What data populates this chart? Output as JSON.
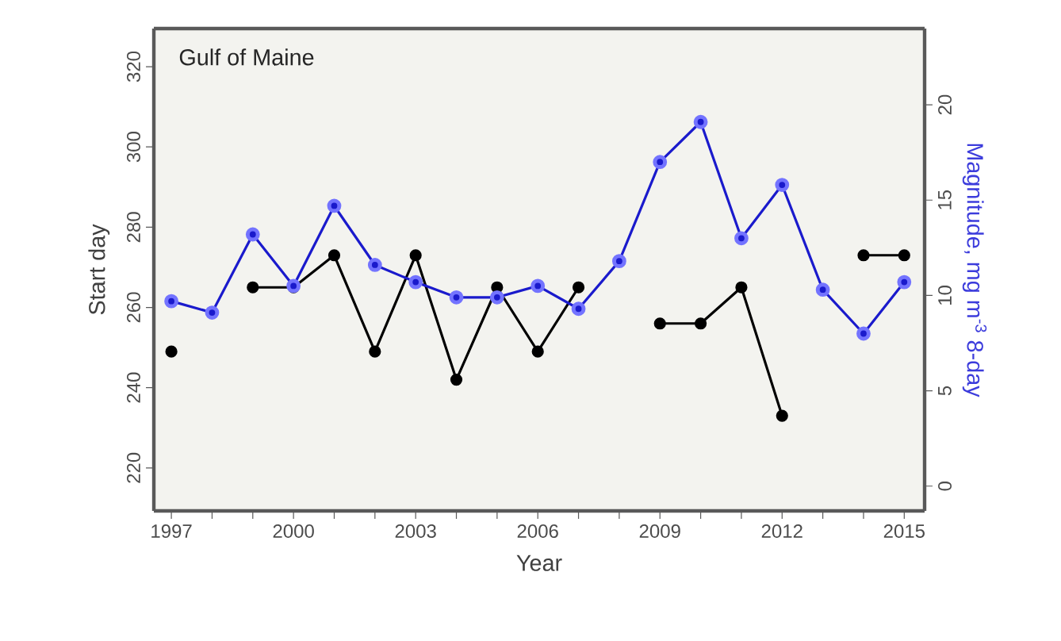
{
  "chart_data": {
    "type": "line",
    "xlabel": "Year",
    "ylabel": "Start day",
    "y2label": "Magnitude, mg m$^{-3}$ 8-day",
    "annotations": [
      "Gulf of Maine"
    ],
    "x": [
      1997,
      1998,
      1999,
      2000,
      2001,
      2002,
      2003,
      2004,
      2005,
      2006,
      2007,
      2008,
      2009,
      2010,
      2011,
      2012,
      2013,
      2014,
      2015
    ],
    "series": [
      {
        "color": "#000000",
        "values": [
          249,
          null,
          265,
          265,
          273,
          249,
          273,
          242,
          265,
          249,
          265,
          null,
          256,
          256,
          265,
          233,
          null,
          273,
          273
        ]
      },
      {
        "color": "#1a1acc",
        "axis": "y2",
        "values": [
          9.7,
          9.1,
          13.2,
          10.5,
          14.7,
          11.6,
          10.7,
          9.9,
          9.9,
          10.5,
          9.3,
          11.8,
          17,
          19.1,
          13,
          15.8,
          10.3,
          8,
          10.7
        ]
      }
    ],
    "xlim": [
      1996.57,
      2015.5
    ],
    "xticks": [
      1997,
      {
        "value": 1998,
        "label": null
      },
      {
        "value": 1999,
        "label": null
      },
      2000,
      {
        "value": 2001,
        "label": null
      },
      {
        "value": 2002,
        "label": null
      },
      2003,
      {
        "value": 2004,
        "label": null
      },
      {
        "value": 2005,
        "label": null
      },
      2006,
      {
        "value": 2007,
        "label": null
      },
      {
        "value": 2008,
        "label": null
      },
      2009,
      {
        "value": 2010,
        "label": null
      },
      {
        "value": 2011,
        "label": null
      },
      2012,
      {
        "value": 2013,
        "label": null
      },
      {
        "value": 2014,
        "label": null
      },
      2015
    ],
    "ylim": [
      209.3,
      329.5
    ],
    "yticks": [
      220,
      240,
      260,
      280,
      300,
      320
    ],
    "y2lim": [
      -1.3,
      24
    ],
    "y2ticks": [
      0,
      5,
      10,
      15,
      20
    ],
    "marker": "circle",
    "line_style": "solid",
    "grid": false
  }
}
